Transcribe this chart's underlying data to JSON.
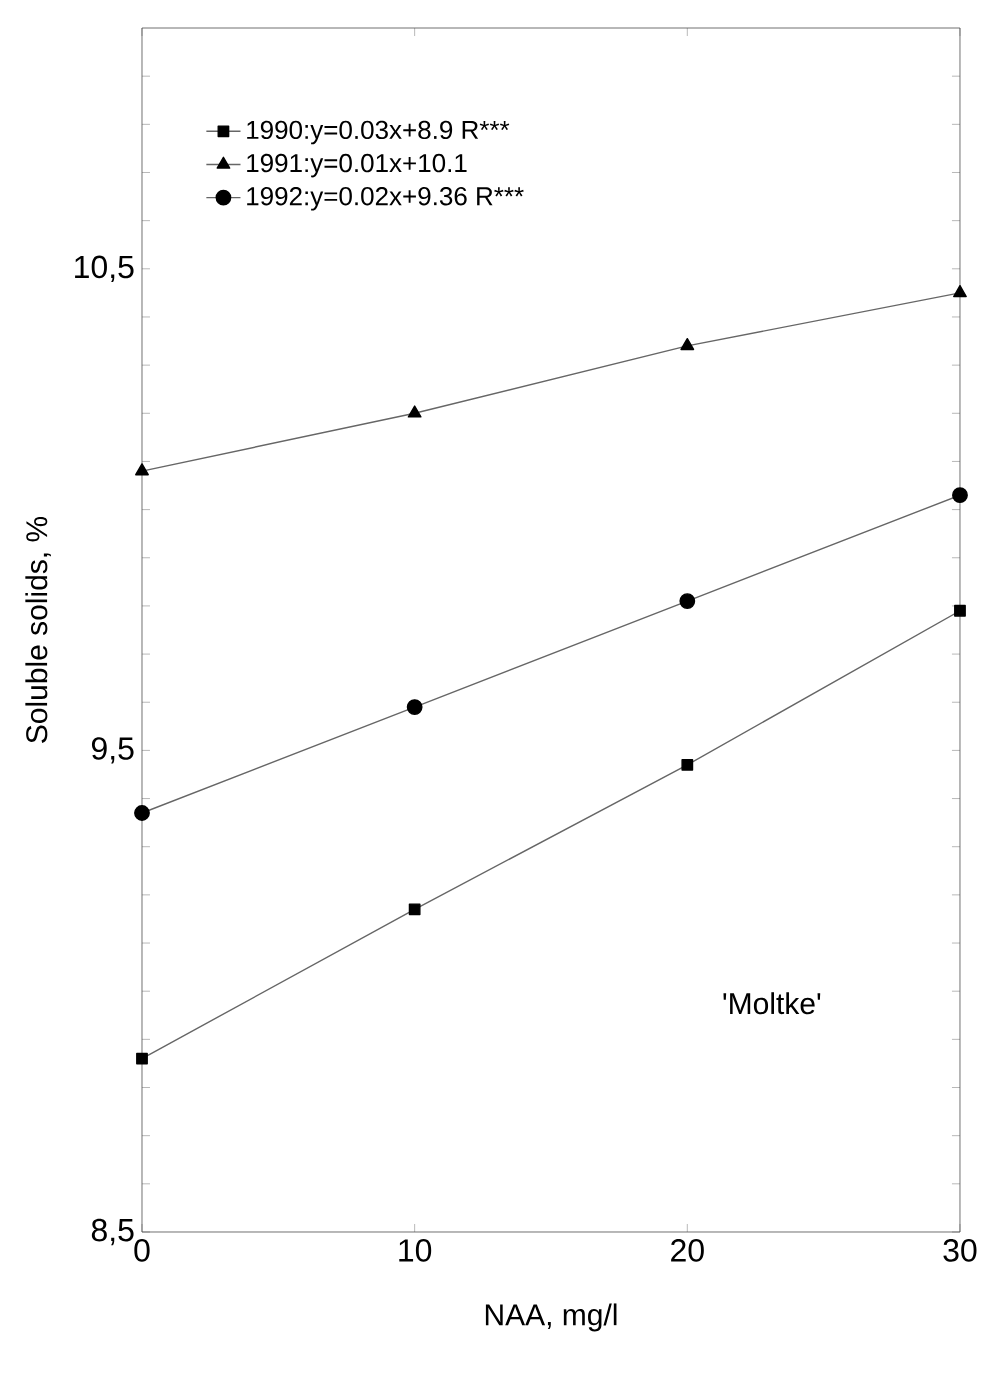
{
  "chart_data": {
    "type": "line",
    "xlabel": "NAA, mg/l",
    "ylabel": "Soluble solids, %",
    "x": [
      0,
      10,
      20,
      30
    ],
    "series": [
      {
        "name": "1990:y=0.03x+8.9  R***",
        "color": "#000000",
        "marker": "square",
        "values": [
          8.86,
          9.17,
          9.47,
          9.79
        ]
      },
      {
        "name": "1991:y=0.01x+10.1",
        "color": "#000000",
        "marker": "triangle",
        "values": [
          10.08,
          10.2,
          10.34,
          10.45
        ]
      },
      {
        "name": "1992:y=0.02x+9.36 R***",
        "color": "#000000",
        "marker": "circle",
        "values": [
          9.37,
          9.59,
          9.81,
          10.03
        ]
      }
    ],
    "xlim": [
      0,
      30
    ],
    "ylim": [
      8.5,
      11
    ],
    "xticks": [
      0,
      10,
      20,
      30
    ],
    "yticks": [
      {
        "value": 8.5,
        "label": "8,5"
      },
      {
        "value": 9.5,
        "label": "9,5"
      },
      {
        "value": 10.5,
        "label": "10,5"
      },
      {
        "value": 8.6,
        "label": null
      },
      {
        "value": 8.7,
        "label": null
      },
      {
        "value": 8.8,
        "label": null
      },
      {
        "value": 8.9,
        "label": null
      },
      {
        "value": 9.0,
        "label": null
      },
      {
        "value": 9.1,
        "label": null
      },
      {
        "value": 9.2,
        "label": null
      },
      {
        "value": 9.3,
        "label": null
      },
      {
        "value": 9.4,
        "label": null
      },
      {
        "value": 9.6,
        "label": null
      },
      {
        "value": 9.7,
        "label": null
      },
      {
        "value": 9.8,
        "label": null
      },
      {
        "value": 9.9,
        "label": null
      },
      {
        "value": 10.0,
        "label": null
      },
      {
        "value": 10.1,
        "label": null
      },
      {
        "value": 10.2,
        "label": null
      },
      {
        "value": 10.3,
        "label": null
      },
      {
        "value": 10.4,
        "label": null
      },
      {
        "value": 10.6,
        "label": null
      },
      {
        "value": 10.7,
        "label": null
      },
      {
        "value": 10.8,
        "label": null
      },
      {
        "value": 10.9,
        "label": null
      }
    ],
    "annotations": [
      "'Moltke'"
    ],
    "legend": "top left",
    "grid": false
  }
}
